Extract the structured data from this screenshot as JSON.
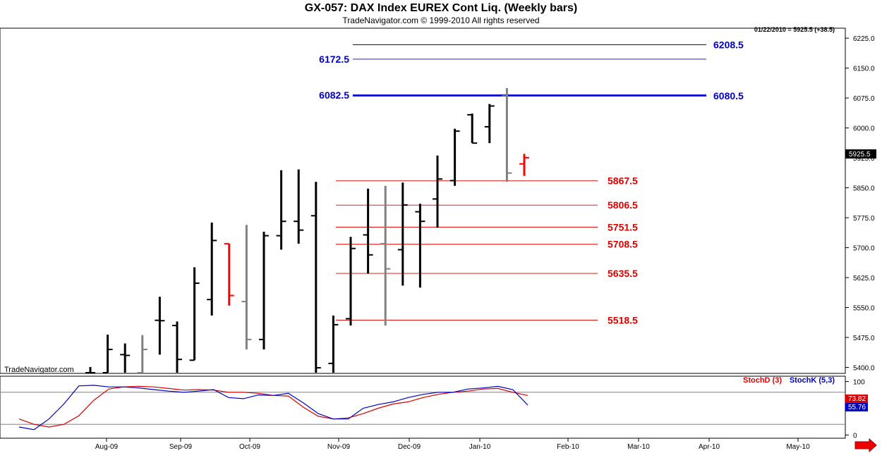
{
  "header": {
    "title": "GX-057:  DAX Index EUREX Cont Liq.  (Weekly bars)",
    "copyright": "TradeNavigator.com © 1999-2010 All rights reserved",
    "quote": "01/22/2010 = 5925.5 (+38.5)",
    "watermark": "TradeNavigator.com"
  },
  "colors": {
    "up_bar": "#000000",
    "down_bar": "#808080",
    "current_bar": "#ff0000",
    "resistance": "#0000cc",
    "support": "#dd0000",
    "stoch_d": "#dd0000",
    "stoch_k": "#0000cc"
  },
  "chart_data": [
    {
      "type": "ohlc",
      "ylim": [
        5385,
        6250
      ],
      "yticks": [
        "6225.0",
        "6150.0",
        "6075.0",
        "6000.0",
        "5925.0",
        "5850.0",
        "5775.0",
        "5700.0",
        "5625.0",
        "5550.0",
        "5475.0",
        "5400.0"
      ],
      "ytick_values": [
        6225,
        6150,
        6075,
        6000,
        5925,
        5850,
        5775,
        5700,
        5625,
        5550,
        5475,
        5400
      ],
      "x_months": [
        "Aug-09",
        "Sep-09",
        "Oct-09",
        "Nov-09",
        "Dec-09",
        "Jan-10",
        "Feb-10",
        "Mar-10",
        "Apr-10",
        "May-10"
      ],
      "last_price_label": "5925.5",
      "last_price": 5925.5,
      "bars": [
        {
          "o": 5380,
          "h": 5401,
          "l": 5380,
          "c": 5380,
          "t": "up"
        },
        {
          "o": 5380,
          "h": 5482,
          "l": 5380,
          "c": 5445,
          "t": "up"
        },
        {
          "o": 5432,
          "h": 5460,
          "l": 5380,
          "c": 5430,
          "t": "up"
        },
        {
          "o": 5380,
          "h": 5481,
          "l": 5380,
          "c": 5445,
          "t": "down"
        },
        {
          "o": 5518,
          "h": 5577,
          "l": 5432,
          "c": 5517,
          "t": "up"
        },
        {
          "o": 5505,
          "h": 5515,
          "l": 5380,
          "c": 5420,
          "t": "up"
        },
        {
          "o": 5418,
          "h": 5651,
          "l": 5418,
          "c": 5611,
          "t": "up"
        },
        {
          "o": 5570,
          "h": 5763,
          "l": 5530,
          "c": 5718,
          "t": "up"
        },
        {
          "o": 5710,
          "h": 5710,
          "l": 5555,
          "c": 5580,
          "t": "current"
        },
        {
          "o": 5565,
          "h": 5757,
          "l": 5445,
          "c": 5470,
          "t": "down"
        },
        {
          "o": 5470,
          "h": 5740,
          "l": 5445,
          "c": 5730,
          "t": "up"
        },
        {
          "o": 5730,
          "h": 5894,
          "l": 5695,
          "c": 5766,
          "t": "up"
        },
        {
          "o": 5766,
          "h": 5896,
          "l": 5710,
          "c": 5744,
          "t": "up"
        },
        {
          "o": 5780,
          "h": 5865,
          "l": 5380,
          "c": 5399,
          "t": "up"
        },
        {
          "o": 5410,
          "h": 5530,
          "l": 5380,
          "c": 5507,
          "t": "up"
        },
        {
          "o": 5522,
          "h": 5727,
          "l": 5505,
          "c": 5698,
          "t": "up"
        },
        {
          "o": 5732,
          "h": 5848,
          "l": 5635,
          "c": 5682,
          "t": "up"
        },
        {
          "o": 5710,
          "h": 5855,
          "l": 5505,
          "c": 5647,
          "t": "down"
        },
        {
          "o": 5695,
          "h": 5863,
          "l": 5605,
          "c": 5807,
          "t": "up"
        },
        {
          "o": 5790,
          "h": 5810,
          "l": 5600,
          "c": 5766,
          "t": "up"
        },
        {
          "o": 5822,
          "h": 5931,
          "l": 5750,
          "c": 5872,
          "t": "up"
        },
        {
          "o": 5868,
          "h": 5998,
          "l": 5855,
          "c": 5992,
          "t": "up"
        },
        {
          "o": 6033,
          "h": 6036,
          "l": 5962,
          "c": 5962,
          "t": "up"
        },
        {
          "o": 6003,
          "h": 6060,
          "l": 5962,
          "c": 6055,
          "t": "up"
        },
        {
          "o": 6080,
          "h": 6100,
          "l": 5865,
          "c": 5887,
          "t": "down"
        },
        {
          "o": 5910,
          "h": 5935,
          "l": 5880,
          "c": 5925.5,
          "t": "current"
        }
      ],
      "levels": [
        {
          "value": 6208.5,
          "label": "6208.5",
          "side": "right",
          "kind": "resistance"
        },
        {
          "value": 6172.5,
          "label": "6172.5",
          "side": "left",
          "kind": "resistance"
        },
        {
          "value": 6082.5,
          "label": "6082.5",
          "side": "left",
          "kind": "resistance"
        },
        {
          "value": 6080.5,
          "label": "6080.5",
          "side": "right",
          "kind": "resistance"
        },
        {
          "value": 5867.5,
          "label": "5867.5",
          "side": "right",
          "kind": "support"
        },
        {
          "value": 5806.5,
          "label": "5806.5",
          "side": "right",
          "kind": "support"
        },
        {
          "value": 5751.5,
          "label": "5751.5",
          "side": "right",
          "kind": "support"
        },
        {
          "value": 5708.5,
          "label": "5708.5",
          "side": "right",
          "kind": "support"
        },
        {
          "value": 5635.5,
          "label": "5635.5",
          "side": "right",
          "kind": "support"
        },
        {
          "value": 5518.5,
          "label": "5518.5",
          "side": "right",
          "kind": "support"
        }
      ]
    },
    {
      "type": "line",
      "ylim": [
        -6,
        110
      ],
      "yticks": [
        "100",
        "50",
        "0"
      ],
      "ytick_values": [
        100,
        50,
        0
      ],
      "guides": [
        80,
        20
      ],
      "series": [
        {
          "name": "StochD (3)",
          "last_label": "73.82",
          "values": [
            30,
            20,
            15,
            20,
            36,
            65,
            86,
            90,
            91,
            90,
            87,
            84,
            85,
            84,
            80,
            80,
            78,
            74,
            73,
            52,
            35,
            30,
            32,
            40,
            50,
            58,
            62,
            70,
            76,
            80,
            82,
            86,
            87,
            80,
            73.82
          ]
        },
        {
          "name": "StochK (5,3)",
          "last_label": "55.76",
          "values": [
            15,
            10,
            30,
            58,
            92,
            93,
            90,
            90,
            88,
            85,
            82,
            80,
            82,
            85,
            70,
            68,
            75,
            74,
            78,
            60,
            40,
            30,
            30,
            50,
            57,
            62,
            70,
            76,
            80,
            80,
            86,
            88,
            91,
            85,
            55.76
          ]
        }
      ]
    }
  ]
}
